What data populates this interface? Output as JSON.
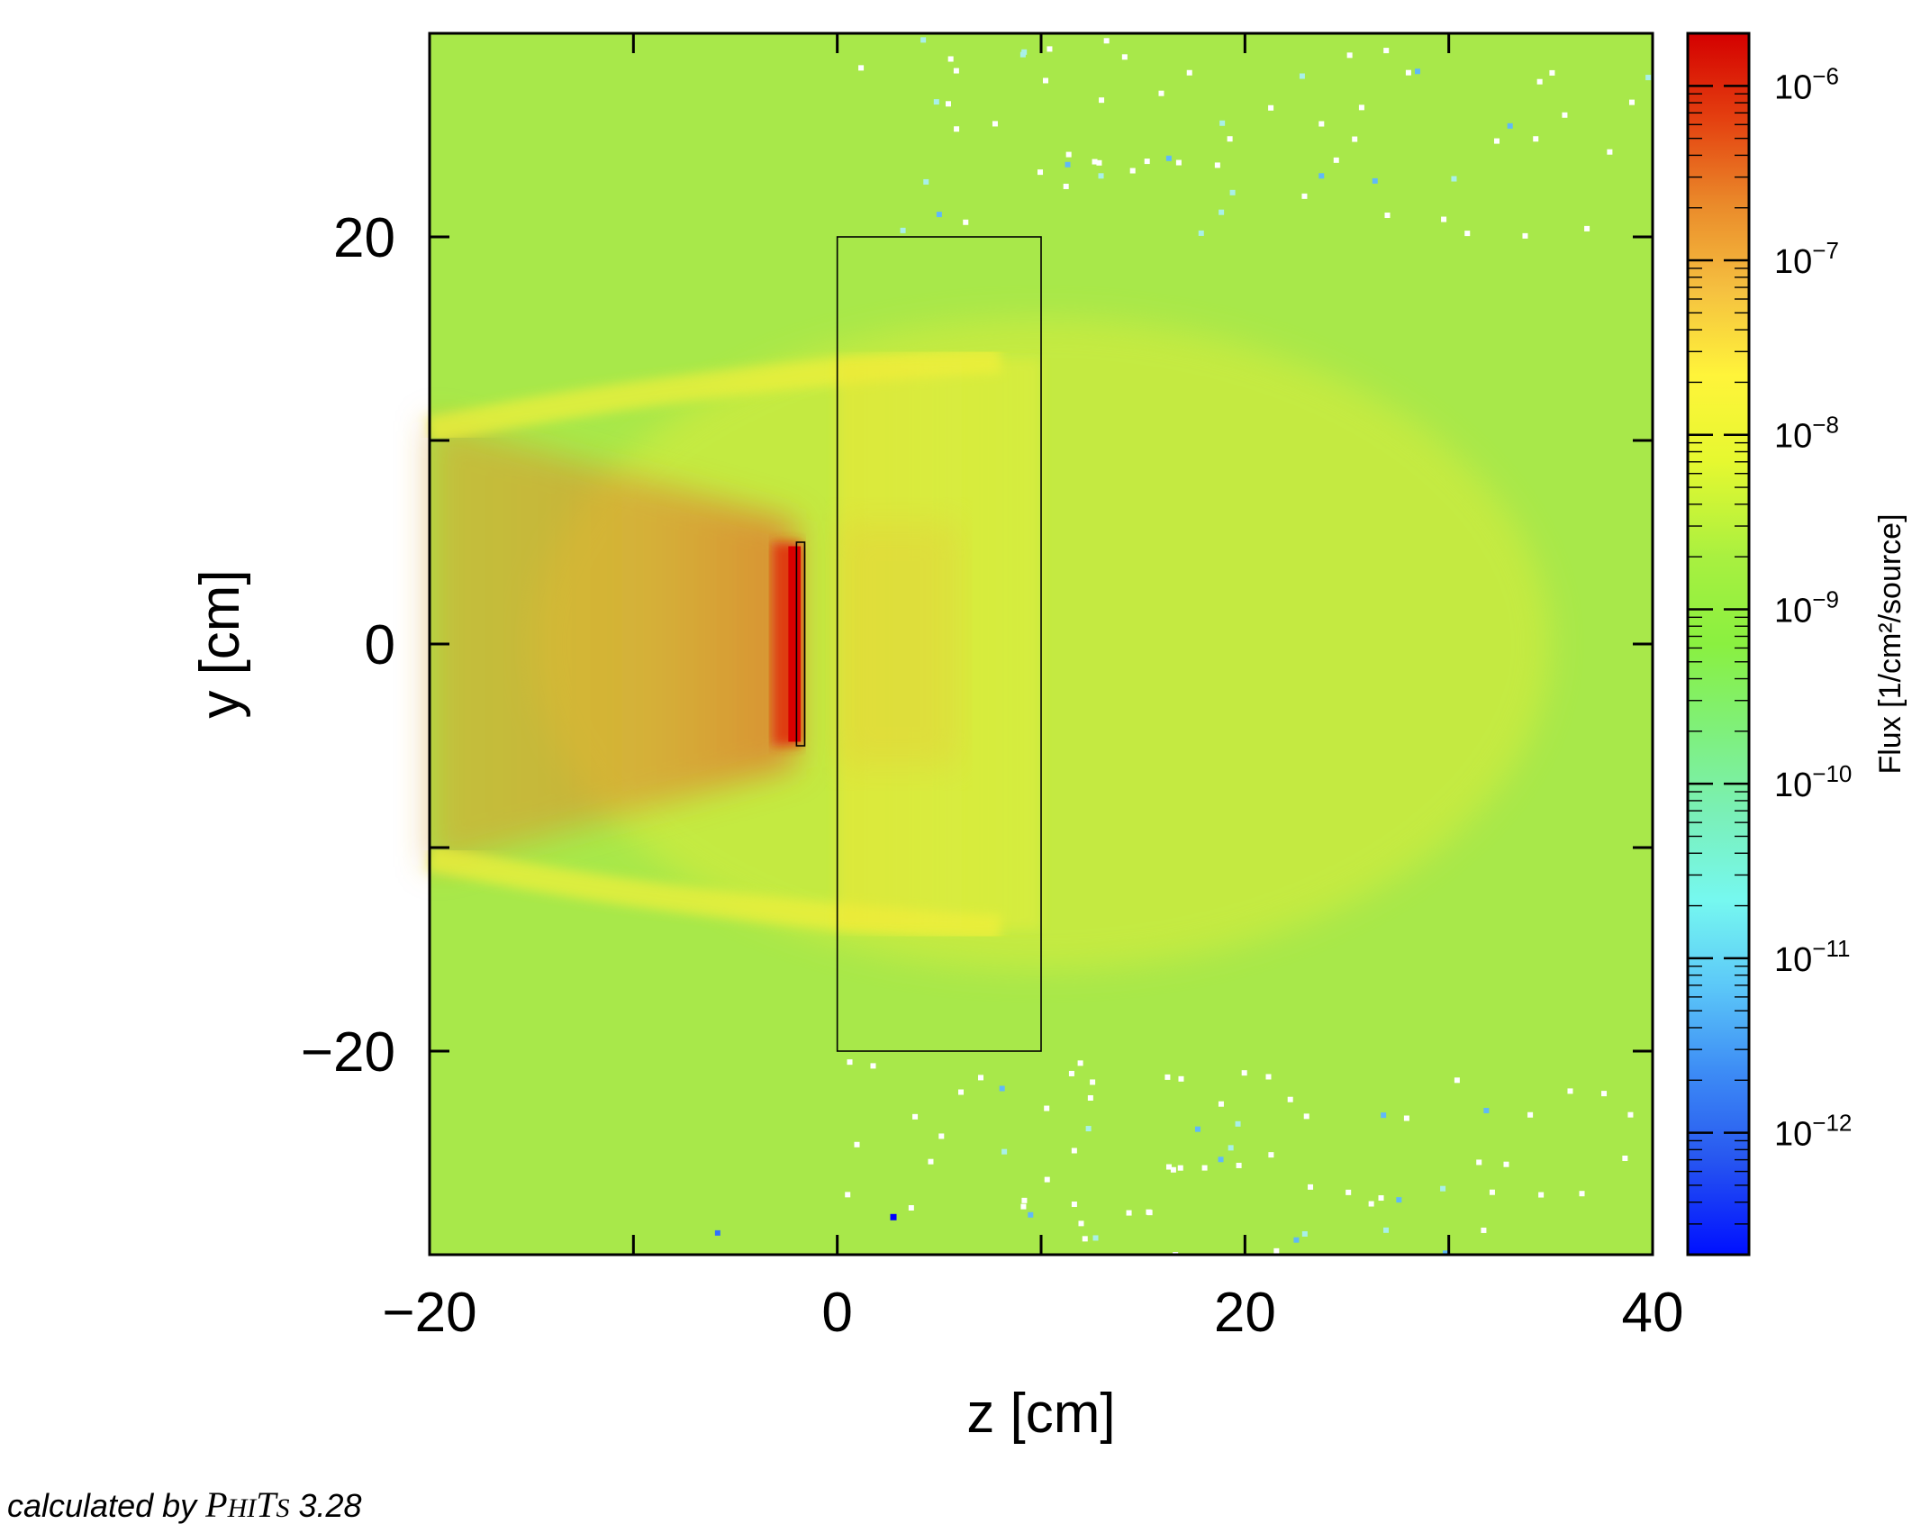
{
  "chart_data": {
    "type": "heatmap",
    "title": "",
    "xlabel": "z [cm]",
    "ylabel": "y [cm]",
    "xlim": [
      -20,
      40
    ],
    "ylim": [
      -30,
      30
    ],
    "x_ticks": [
      -20,
      0,
      20,
      40
    ],
    "x_tick_labels": [
      "−20",
      "0",
      "20",
      "40"
    ],
    "x_minor_ticks": [
      -10,
      10,
      30
    ],
    "y_ticks": [
      -20,
      0,
      20
    ],
    "y_tick_labels": [
      "−20",
      "0",
      "20"
    ],
    "y_minor_ticks": [
      -10,
      10
    ],
    "colorbar": {
      "label": "Flux [1/cm²/source]",
      "scale": "log",
      "range": [
        2e-13,
        2e-06
      ],
      "ticks": [
        {
          "base": "10",
          "exp": "−6",
          "value": 1e-06
        },
        {
          "base": "10",
          "exp": "−7",
          "value": 1e-07
        },
        {
          "base": "10",
          "exp": "−8",
          "value": 1e-08
        },
        {
          "base": "10",
          "exp": "−9",
          "value": 1e-09
        },
        {
          "base": "10",
          "exp": "−10",
          "value": 1e-10
        },
        {
          "base": "10",
          "exp": "−11",
          "value": 1e-11
        },
        {
          "base": "10",
          "exp": "−12",
          "value": 1e-12
        }
      ]
    },
    "regions": [
      {
        "z": [
          0,
          10
        ],
        "y": [
          -20,
          20
        ]
      },
      {
        "z": [
          -2,
          -1.6
        ],
        "y": [
          -5,
          5
        ]
      }
    ]
  },
  "credit": {
    "prefix": "calculated by ",
    "brand_p": "P",
    "brand_hi": "HI",
    "brand_t": "T",
    "brand_s": "S",
    "version": " 3.28"
  }
}
